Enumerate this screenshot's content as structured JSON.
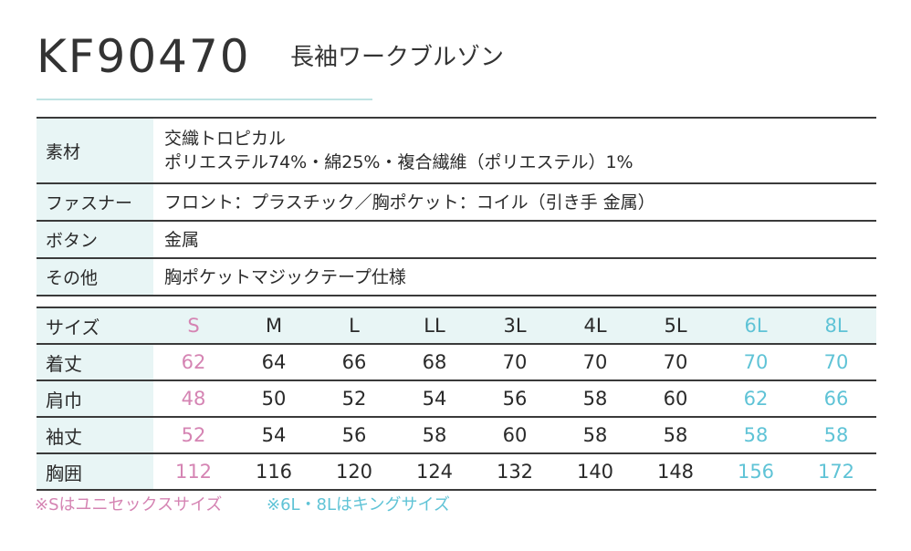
{
  "header": {
    "model": "KF90470",
    "product_name": "長袖ワークブルゾン"
  },
  "spec": [
    {
      "label": "素材",
      "lines": [
        "交織トロピカル",
        "ポリエステル74%・綿25%・複合繊維（ポリエステル）1%"
      ]
    },
    {
      "label": "ファスナー",
      "lines": [
        "フロント：プラスチック／胸ポケット：コイル（引き手 金属）"
      ]
    },
    {
      "label": "ボタン",
      "lines": [
        "金属"
      ]
    },
    {
      "label": "その他",
      "lines": [
        "胸ポケットマジックテープ仕様"
      ]
    }
  ],
  "size_table": {
    "header_label": "サイズ",
    "sizes": [
      "S",
      "M",
      "L",
      "LL",
      "3L",
      "4L",
      "5L",
      "6L",
      "8L"
    ],
    "rows": [
      {
        "label": "着丈",
        "values": [
          "62",
          "64",
          "66",
          "68",
          "70",
          "70",
          "70",
          "70",
          "70"
        ]
      },
      {
        "label": "肩巾",
        "values": [
          "48",
          "50",
          "52",
          "54",
          "56",
          "58",
          "60",
          "62",
          "66"
        ]
      },
      {
        "label": "袖丈",
        "values": [
          "52",
          "54",
          "56",
          "58",
          "60",
          "58",
          "58",
          "58",
          "58"
        ]
      },
      {
        "label": "胸囲",
        "values": [
          "112",
          "116",
          "120",
          "124",
          "132",
          "140",
          "148",
          "156",
          "172"
        ]
      }
    ]
  },
  "notes": {
    "unisex": "※Sはユニセックスサイズ",
    "king": "※6L・8Lはキングサイズ"
  },
  "colors": {
    "unisex": "#d584b3",
    "king": "#5fc3d6",
    "label_bg": "#e8f5f5",
    "title_rule": "#bfe3e3"
  }
}
